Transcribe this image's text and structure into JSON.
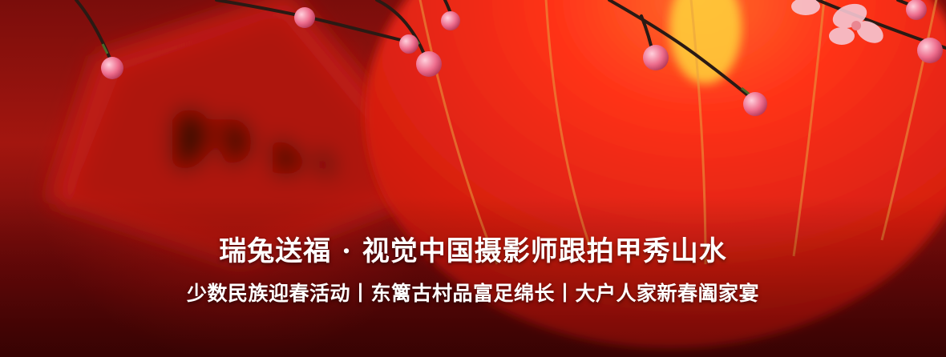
{
  "banner": {
    "title": "瑞兔送福 · 视觉中国摄影师跟拍甲秀山水",
    "subtitle": "少数民族迎春活动丨东篱古村品富足绵长丨大户人家新春阖家宴",
    "scene": "red-lantern-plum-blossom",
    "colors": {
      "accent": "#e8261a",
      "text": "#ffffff",
      "lantern_glow": "#ffd23a"
    }
  }
}
